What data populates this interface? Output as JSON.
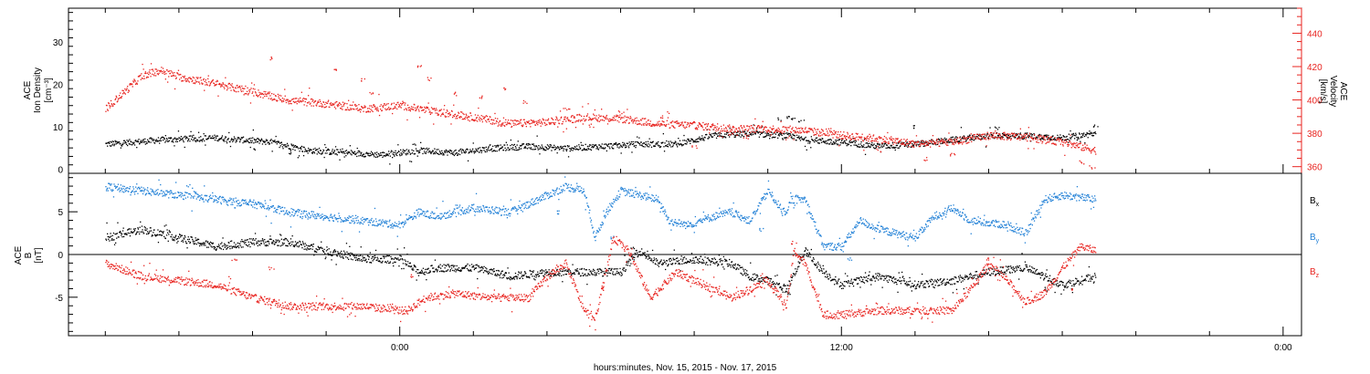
{
  "colors": {
    "black": "#000000",
    "red": "#e8231f",
    "blue": "#1f7fd6",
    "axis": "#000000"
  },
  "chart_data": [
    {
      "type": "scatter",
      "panel": "top",
      "ylabel_lines": [
        "ACE",
        "Ion Density",
        "[cm⁻³]"
      ],
      "y2label_lines": [
        "ACE",
        "Velocity",
        "[km/s]"
      ],
      "ylim": [
        -1,
        38
      ],
      "y_ticks": [
        0,
        10,
        20,
        30
      ],
      "y2lim": [
        356,
        455
      ],
      "y2_ticks": [
        360,
        380,
        400,
        420,
        440
      ],
      "series": [
        {
          "axis": "left",
          "color": "black",
          "anchors": [
            [
              -8.0,
              6.0
            ],
            [
              -6.5,
              7.0
            ],
            [
              -5.0,
              7.5
            ],
            [
              -3.5,
              6.5
            ],
            [
              -2.5,
              4.5
            ],
            [
              -1.5,
              4.0
            ],
            [
              -0.5,
              3.5
            ],
            [
              0.5,
              4.5
            ],
            [
              1.5,
              4.0
            ],
            [
              2.5,
              5.0
            ],
            [
              3.5,
              5.5
            ],
            [
              4.5,
              5.0
            ],
            [
              5.5,
              5.5
            ],
            [
              6.5,
              6.0
            ],
            [
              7.5,
              6.0
            ],
            [
              8.5,
              8.0
            ],
            [
              9.5,
              8.5
            ],
            [
              10.5,
              8.0
            ],
            [
              11.0,
              7.0
            ],
            [
              12.0,
              6.5
            ],
            [
              13.0,
              5.5
            ],
            [
              14.0,
              6.0
            ],
            [
              15.0,
              7.0
            ],
            [
              16.0,
              8.0
            ],
            [
              17.0,
              8.0
            ],
            [
              18.0,
              7.5
            ],
            [
              18.9,
              8.5
            ]
          ],
          "outliers": [
            [
              10.3,
              12.0
            ],
            [
              10.5,
              12.5
            ],
            [
              10.7,
              12.0
            ],
            [
              10.9,
              11.5
            ],
            [
              14.0,
              10.0
            ],
            [
              16.2,
              9.8
            ],
            [
              18.9,
              10.5
            ],
            [
              -4.0,
              5.0
            ],
            [
              -3.0,
              4.0
            ]
          ]
        },
        {
          "axis": "right",
          "color": "red",
          "anchors": [
            [
              -8.0,
              395
            ],
            [
              -7.5,
              405
            ],
            [
              -7.0,
              415
            ],
            [
              -6.5,
              418
            ],
            [
              -6.0,
              414
            ],
            [
              -5.0,
              410
            ],
            [
              -4.0,
              405
            ],
            [
              -3.0,
              400
            ],
            [
              -2.0,
              398
            ],
            [
              -1.0,
              395
            ],
            [
              0.0,
              397
            ],
            [
              1.0,
              393
            ],
            [
              2.0,
              390
            ],
            [
              3.0,
              386
            ],
            [
              4.0,
              387
            ],
            [
              5.0,
              390
            ],
            [
              6.0,
              389
            ],
            [
              7.0,
              386
            ],
            [
              8.0,
              385
            ],
            [
              9.0,
              383
            ],
            [
              10.0,
              383
            ],
            [
              11.0,
              382
            ],
            [
              12.0,
              379
            ],
            [
              13.0,
              377
            ],
            [
              14.0,
              374
            ],
            [
              15.0,
              375
            ],
            [
              16.0,
              379
            ],
            [
              17.0,
              378
            ],
            [
              18.0,
              375
            ],
            [
              18.9,
              370
            ]
          ],
          "outliers": [
            [
              -3.5,
              425
            ],
            [
              -1.8,
              418
            ],
            [
              -1.0,
              412
            ],
            [
              -0.8,
              405
            ],
            [
              0.5,
              420
            ],
            [
              0.8,
              413
            ],
            [
              1.5,
              404
            ],
            [
              2.2,
              402
            ],
            [
              2.8,
              407
            ],
            [
              3.4,
              399
            ],
            [
              4.5,
              395
            ],
            [
              5.2,
              385
            ],
            [
              6.0,
              393
            ],
            [
              7.1,
              390
            ],
            [
              8.0,
              372
            ],
            [
              9.0,
              380
            ],
            [
              9.4,
              378
            ],
            [
              13.0,
              370
            ],
            [
              14.3,
              365
            ],
            [
              15.0,
              368
            ],
            [
              18.5,
              363
            ],
            [
              18.8,
              360
            ]
          ]
        }
      ]
    },
    {
      "type": "scatter",
      "panel": "bottom",
      "ylabel_lines": [
        "ACE",
        "B",
        "[nT]"
      ],
      "ylim": [
        -9.5,
        9.5
      ],
      "y_ticks": [
        -5,
        0,
        5
      ],
      "zero_line": true,
      "legend": [
        {
          "label": "B",
          "sub": "x",
          "color": "black"
        },
        {
          "label": "B",
          "sub": "y",
          "color": "blue"
        },
        {
          "label": "B",
          "sub": "z",
          "color": "red"
        }
      ],
      "series": [
        {
          "name": "Bx",
          "color": "black",
          "anchors": [
            [
              -8.0,
              2.0
            ],
            [
              -7.0,
              3.0
            ],
            [
              -6.0,
              2.0
            ],
            [
              -5.0,
              1.0
            ],
            [
              -4.0,
              1.5
            ],
            [
              -3.0,
              1.5
            ],
            [
              -2.0,
              0.5
            ],
            [
              -1.5,
              0.0
            ],
            [
              -1.0,
              -0.5
            ],
            [
              0.0,
              -0.5
            ],
            [
              0.5,
              -2.0
            ],
            [
              1.0,
              -1.5
            ],
            [
              2.0,
              -1.5
            ],
            [
              3.0,
              -2.5
            ],
            [
              4.0,
              -2.0
            ],
            [
              5.0,
              -2.0
            ],
            [
              6.0,
              -2.0
            ],
            [
              6.5,
              0.5
            ],
            [
              7.0,
              -1.0
            ],
            [
              8.0,
              -0.5
            ],
            [
              9.0,
              -1.0
            ],
            [
              9.5,
              -2.5
            ],
            [
              10.0,
              -3.0
            ],
            [
              10.5,
              -4.0
            ],
            [
              11.0,
              0.5
            ],
            [
              11.5,
              -2.0
            ],
            [
              12.0,
              -3.5
            ],
            [
              13.0,
              -2.5
            ],
            [
              14.0,
              -3.5
            ],
            [
              15.0,
              -3.0
            ],
            [
              16.0,
              -2.0
            ],
            [
              17.0,
              -1.5
            ],
            [
              18.0,
              -3.5
            ],
            [
              18.9,
              -2.5
            ]
          ],
          "outliers": [
            [
              10.6,
              -4.5
            ],
            [
              17.5,
              -4.0
            ],
            [
              6.3,
              0.8
            ]
          ]
        },
        {
          "name": "By",
          "color": "blue",
          "anchors": [
            [
              -8.0,
              8.0
            ],
            [
              -7.0,
              7.5
            ],
            [
              -6.0,
              7.0
            ],
            [
              -5.0,
              6.5
            ],
            [
              -4.0,
              6.0
            ],
            [
              -3.0,
              5.0
            ],
            [
              -2.0,
              4.5
            ],
            [
              -1.0,
              4.0
            ],
            [
              0.0,
              3.5
            ],
            [
              0.5,
              5.0
            ],
            [
              1.0,
              4.5
            ],
            [
              2.0,
              5.5
            ],
            [
              3.0,
              5.0
            ],
            [
              4.0,
              7.0
            ],
            [
              4.5,
              8.0
            ],
            [
              5.0,
              7.5
            ],
            [
              5.3,
              2.0
            ],
            [
              5.6,
              5.0
            ],
            [
              6.0,
              7.5
            ],
            [
              6.5,
              7.0
            ],
            [
              7.0,
              6.5
            ],
            [
              7.3,
              4.0
            ],
            [
              7.8,
              3.5
            ],
            [
              8.5,
              4.5
            ],
            [
              9.0,
              5.0
            ],
            [
              9.5,
              4.0
            ],
            [
              10.0,
              7.5
            ],
            [
              10.5,
              4.5
            ],
            [
              10.6,
              6.5
            ],
            [
              11.0,
              6.5
            ],
            [
              11.5,
              1.0
            ],
            [
              12.0,
              1.0
            ],
            [
              12.5,
              4.0
            ],
            [
              13.0,
              3.0
            ],
            [
              14.0,
              2.0
            ],
            [
              14.5,
              4.5
            ],
            [
              15.0,
              5.5
            ],
            [
              15.5,
              4.0
            ],
            [
              16.5,
              3.5
            ],
            [
              17.0,
              2.5
            ],
            [
              17.5,
              6.5
            ],
            [
              18.0,
              7.0
            ],
            [
              18.9,
              6.5
            ]
          ],
          "outliers": [
            [
              4.3,
              5.0
            ],
            [
              5.8,
              2.0
            ],
            [
              9.8,
              3.0
            ],
            [
              12.2,
              -0.5
            ]
          ]
        },
        {
          "name": "Bz",
          "color": "red",
          "anchors": [
            [
              -8.0,
              -1.0
            ],
            [
              -7.0,
              -2.5
            ],
            [
              -6.0,
              -3.0
            ],
            [
              -5.0,
              -3.5
            ],
            [
              -4.0,
              -5.0
            ],
            [
              -3.0,
              -6.0
            ],
            [
              -2.0,
              -6.0
            ],
            [
              -1.0,
              -6.0
            ],
            [
              0.0,
              -6.5
            ],
            [
              0.2,
              -6.5
            ],
            [
              0.7,
              -5.0
            ],
            [
              1.5,
              -4.5
            ],
            [
              2.5,
              -5.0
            ],
            [
              3.5,
              -5.0
            ],
            [
              4.0,
              -2.5
            ],
            [
              4.5,
              -1.0
            ],
            [
              5.0,
              -6.5
            ],
            [
              5.3,
              -7.5
            ],
            [
              5.8,
              2.0
            ],
            [
              6.2,
              0.5
            ],
            [
              6.8,
              -5.0
            ],
            [
              7.5,
              -2.0
            ],
            [
              8.0,
              -3.0
            ],
            [
              9.0,
              -5.0
            ],
            [
              9.5,
              -4.0
            ],
            [
              10.0,
              -3.0
            ],
            [
              10.5,
              -6.0
            ],
            [
              10.7,
              0.5
            ],
            [
              11.0,
              -1.0
            ],
            [
              11.5,
              -7.0
            ],
            [
              12.0,
              -7.0
            ],
            [
              13.0,
              -6.5
            ],
            [
              14.0,
              -6.5
            ],
            [
              15.0,
              -6.5
            ],
            [
              15.5,
              -4.0
            ],
            [
              16.0,
              -1.0
            ],
            [
              16.5,
              -3.0
            ],
            [
              17.0,
              -5.5
            ],
            [
              17.5,
              -4.5
            ],
            [
              18.0,
              -1.5
            ],
            [
              18.5,
              1.0
            ],
            [
              18.9,
              0.5
            ]
          ],
          "outliers": [
            [
              -4.5,
              -0.5
            ],
            [
              -3.5,
              -1.5
            ],
            [
              0.3,
              -2.5
            ],
            [
              5.5,
              -4.0
            ],
            [
              10.7,
              1.5
            ],
            [
              16.0,
              -0.5
            ],
            [
              18.3,
              -4.0
            ]
          ]
        }
      ]
    }
  ],
  "x_axis": {
    "xlim": [
      -9.0,
      24.5
    ],
    "major_ticks": [
      {
        "value": 0,
        "label": "0:00"
      },
      {
        "value": 12,
        "label": "12:00"
      },
      {
        "value": 24,
        "label": "0:00"
      }
    ],
    "minor_step": 2,
    "xlabel": "hours:minutes, Nov. 15, 2015 - Nov. 17, 2015"
  }
}
